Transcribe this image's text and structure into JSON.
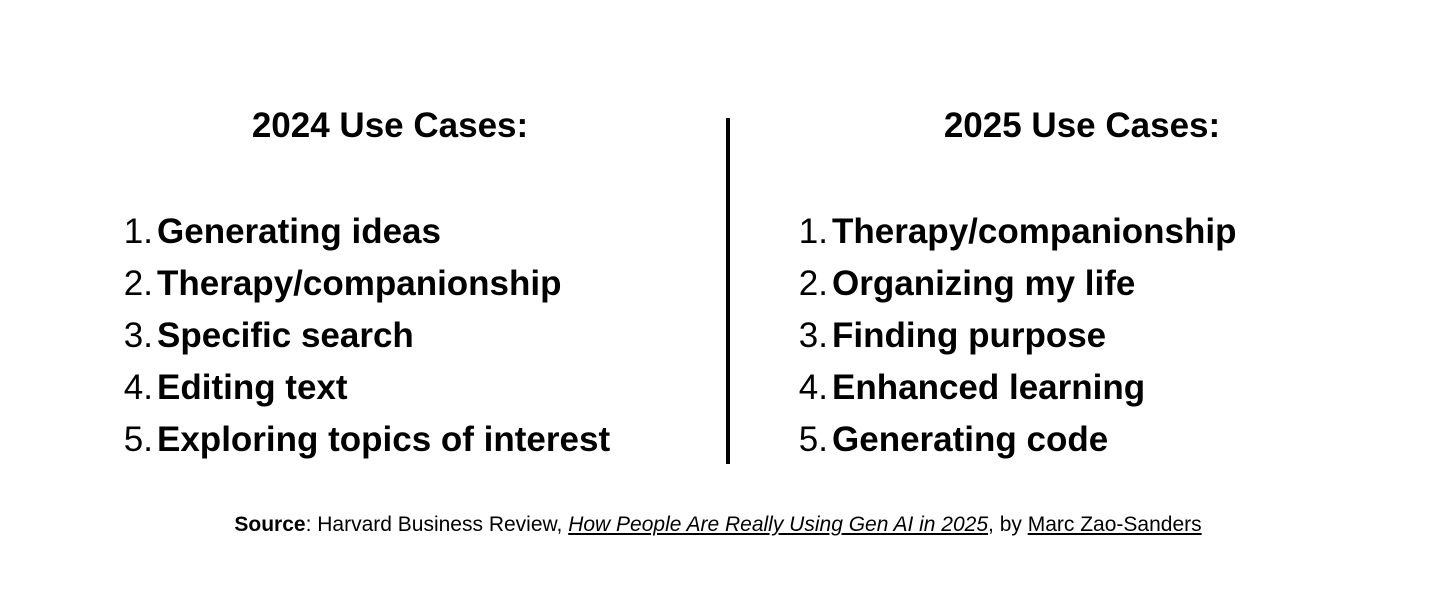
{
  "columns": [
    {
      "title": "2024 Use Cases:",
      "items": [
        {
          "number": "1.",
          "text": "Generating ideas"
        },
        {
          "number": "2.",
          "text": "Therapy/companionship"
        },
        {
          "number": "3.",
          "text": "Specific search"
        },
        {
          "number": "4.",
          "text": "Editing text"
        },
        {
          "number": "5.",
          "text": "Exploring topics of interest"
        }
      ]
    },
    {
      "title": "2025 Use Cases:",
      "items": [
        {
          "number": "1.",
          "text": "Therapy/companionship"
        },
        {
          "number": "2.",
          "text": "Organizing my life"
        },
        {
          "number": "3.",
          "text": "Finding purpose"
        },
        {
          "number": "4.",
          "text": "Enhanced learning"
        },
        {
          "number": "5.",
          "text": "Generating code"
        }
      ]
    }
  ],
  "source": {
    "label": "Source",
    "separator": ": Harvard Business Review, ",
    "article": "How People Are Really Using Gen AI in 2025",
    "by": ", by ",
    "author": "Marc Zao-Sanders"
  }
}
